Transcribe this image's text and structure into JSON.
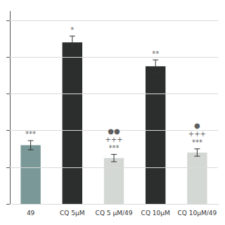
{
  "chart_data": {
    "type": "bar",
    "categories": [
      "49",
      "CQ 5μM",
      "CQ 5 μM/49",
      "CQ 10μM",
      "CQ 10μM/49"
    ],
    "values": [
      32,
      88,
      25,
      75,
      28
    ],
    "errors": [
      2.5,
      3.5,
      2.0,
      3.5,
      2.0
    ],
    "colors": [
      "#7a9898",
      "#2b2e2c",
      "#d4d8d4",
      "#2b2e2c",
      "#d4d8d4"
    ],
    "ylim": [
      0,
      105
    ],
    "yticks": [
      0,
      20,
      40,
      60,
      80,
      100
    ],
    "grid": true,
    "tick_labels": "x",
    "annotations": [
      {
        "category": "49",
        "text": [
          "***"
        ]
      },
      {
        "category": "CQ 5μM",
        "text": [
          "*"
        ]
      },
      {
        "category": "CQ 5 μM/49",
        "text": [
          "***",
          "+++",
          "●●"
        ]
      },
      {
        "category": "CQ 10μM",
        "text": [
          "**"
        ]
      },
      {
        "category": "CQ 10μM/49",
        "text": [
          "***",
          "+++",
          "●"
        ]
      }
    ]
  }
}
